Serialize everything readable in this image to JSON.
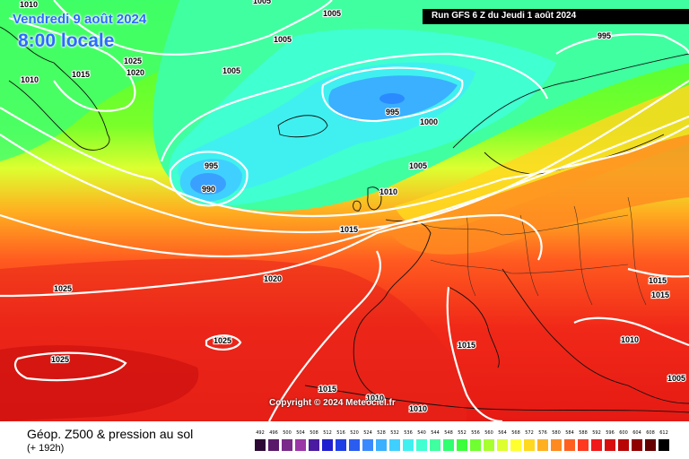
{
  "header": {
    "date_line": "Vendredi 9 août 2024",
    "time_line": "8:00 locale",
    "run_info": "Run GFS 6 Z du Jeudi 1 août 2024"
  },
  "map": {
    "copyright": "Copyright © 2024 Meteociel.fr",
    "pressure_labels": [
      {
        "text": "1010"
      },
      {
        "text": "1005"
      },
      {
        "text": "1005"
      },
      {
        "text": "995"
      },
      {
        "text": "1005"
      },
      {
        "text": "1025"
      },
      {
        "text": "1020"
      },
      {
        "text": "1015"
      },
      {
        "text": "1010"
      },
      {
        "text": "1005"
      },
      {
        "text": "995"
      },
      {
        "text": "1000"
      },
      {
        "text": "995"
      },
      {
        "text": "990"
      },
      {
        "text": "1005"
      },
      {
        "text": "1010"
      },
      {
        "text": "1015"
      },
      {
        "text": "1020"
      },
      {
        "text": "1025"
      },
      {
        "text": "1025"
      },
      {
        "text": "1025"
      },
      {
        "text": "1015"
      },
      {
        "text": "1015"
      },
      {
        "text": "1010"
      },
      {
        "text": "1015"
      },
      {
        "text": "1015"
      },
      {
        "text": "1010"
      },
      {
        "text": "1010"
      },
      {
        "text": "1005"
      }
    ]
  },
  "footer": {
    "parameter_title": "Géop. Z500 & pression au sol",
    "forecast_step": "(+ 192h)"
  },
  "legend": {
    "unit_note": "",
    "ticks": [
      "492",
      "496",
      "500",
      "504",
      "508",
      "512",
      "516",
      "520",
      "524",
      "528",
      "532",
      "536",
      "540",
      "544",
      "548",
      "552",
      "556",
      "560",
      "564",
      "568",
      "572",
      "576",
      "580",
      "584",
      "588",
      "592",
      "596",
      "600",
      "604",
      "608",
      "612"
    ],
    "colors": [
      "#2d0a36",
      "#5a1a6a",
      "#7a2a8a",
      "#9a36a6",
      "#4a1aa0",
      "#2020d0",
      "#1e3ee6",
      "#2a5cf0",
      "#3a8aff",
      "#3ab0ff",
      "#40d0ff",
      "#40f0f0",
      "#40ffd0",
      "#40ffa0",
      "#30ff70",
      "#3aff3a",
      "#70ff30",
      "#a8ff30",
      "#ddff30",
      "#ffff30",
      "#ffd820",
      "#ffb020",
      "#ff8a20",
      "#ff6020",
      "#ff3a20",
      "#f01818",
      "#d80e0e",
      "#b80606",
      "#900000",
      "#640000",
      "#000000"
    ]
  }
}
